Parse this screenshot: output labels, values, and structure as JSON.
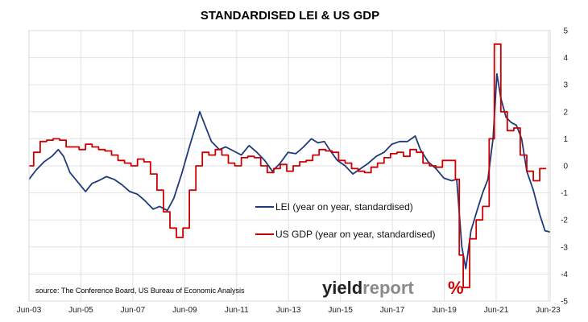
{
  "chart_data": {
    "type": "line",
    "title": "STANDARDISED LEI & US GDP",
    "source": "source: The Conference Board, US Bureau of Economic Analysis",
    "brand": {
      "part1": "yield",
      "part2": "report",
      "symbol": "%"
    },
    "x_tick_labels": [
      "Jun-03",
      "Jun-05",
      "Jun-07",
      "Jun-09",
      "Jun-11",
      "Jun-13",
      "Jun-15",
      "Jun-17",
      "Jun-19",
      "Jun-21",
      "Jun-23"
    ],
    "y_ticks": [
      5,
      4,
      3,
      2,
      1,
      0,
      -1,
      -2,
      -3,
      -4,
      -5
    ],
    "ylim": [
      -5,
      5
    ],
    "xlim": [
      2003.42,
      2023.5
    ],
    "y_axis_side": "right",
    "grid": {
      "horizontal": true,
      "vertical": true
    },
    "legend_position": "center",
    "colors": {
      "lei": "#1f3a7a",
      "gdp": "#cc0000",
      "brand_dark": "#222222",
      "brand_accent": "#8a8a8a",
      "brand_symbol": "#cc0000",
      "grid": "#e2e2e2"
    },
    "series": [
      {
        "name": "LEI (year on year, standardised)",
        "color": "#1f3a7a",
        "style": "line",
        "points": [
          [
            2003.42,
            -0.5
          ],
          [
            2003.7,
            -0.15
          ],
          [
            2004.0,
            0.15
          ],
          [
            2004.3,
            0.35
          ],
          [
            2004.55,
            0.6
          ],
          [
            2004.75,
            0.35
          ],
          [
            2005.0,
            -0.25
          ],
          [
            2005.3,
            -0.6
          ],
          [
            2005.6,
            -0.95
          ],
          [
            2005.85,
            -0.65
          ],
          [
            2006.1,
            -0.55
          ],
          [
            2006.4,
            -0.4
          ],
          [
            2006.7,
            -0.5
          ],
          [
            2007.0,
            -0.7
          ],
          [
            2007.3,
            -0.95
          ],
          [
            2007.6,
            -1.05
          ],
          [
            2007.9,
            -1.3
          ],
          [
            2008.2,
            -1.6
          ],
          [
            2008.45,
            -1.5
          ],
          [
            2008.75,
            -1.65
          ],
          [
            2009.0,
            -1.2
          ],
          [
            2009.3,
            -0.3
          ],
          [
            2009.6,
            0.7
          ],
          [
            2009.85,
            1.5
          ],
          [
            2010.0,
            2.0
          ],
          [
            2010.2,
            1.5
          ],
          [
            2010.45,
            0.9
          ],
          [
            2010.75,
            0.6
          ],
          [
            2011.0,
            0.7
          ],
          [
            2011.3,
            0.55
          ],
          [
            2011.6,
            0.4
          ],
          [
            2011.9,
            0.75
          ],
          [
            2012.2,
            0.5
          ],
          [
            2012.5,
            0.2
          ],
          [
            2012.8,
            -0.2
          ],
          [
            2013.1,
            0.1
          ],
          [
            2013.4,
            0.5
          ],
          [
            2013.7,
            0.45
          ],
          [
            2014.0,
            0.7
          ],
          [
            2014.3,
            1.0
          ],
          [
            2014.55,
            0.85
          ],
          [
            2014.8,
            0.9
          ],
          [
            2015.0,
            0.6
          ],
          [
            2015.3,
            0.2
          ],
          [
            2015.6,
            0.0
          ],
          [
            2015.9,
            -0.3
          ],
          [
            2016.2,
            -0.1
          ],
          [
            2016.5,
            0.1
          ],
          [
            2016.8,
            0.35
          ],
          [
            2017.1,
            0.5
          ],
          [
            2017.4,
            0.8
          ],
          [
            2017.7,
            0.9
          ],
          [
            2018.0,
            0.9
          ],
          [
            2018.3,
            1.1
          ],
          [
            2018.5,
            0.6
          ],
          [
            2018.8,
            0.15
          ],
          [
            2019.1,
            -0.1
          ],
          [
            2019.4,
            -0.45
          ],
          [
            2019.7,
            -0.55
          ],
          [
            2019.9,
            -0.5
          ],
          [
            2020.1,
            -3.0
          ],
          [
            2020.25,
            -3.8
          ],
          [
            2020.45,
            -2.4
          ],
          [
            2020.7,
            -1.6
          ],
          [
            2020.9,
            -1.0
          ],
          [
            2021.1,
            -0.5
          ],
          [
            2021.3,
            1.0
          ],
          [
            2021.45,
            3.4
          ],
          [
            2021.6,
            2.5
          ],
          [
            2021.8,
            1.8
          ],
          [
            2022.0,
            1.6
          ],
          [
            2022.2,
            1.5
          ],
          [
            2022.4,
            1.0
          ],
          [
            2022.6,
            -0.2
          ],
          [
            2022.85,
            -0.9
          ],
          [
            2023.1,
            -1.8
          ],
          [
            2023.3,
            -2.4
          ],
          [
            2023.5,
            -2.45
          ]
        ]
      },
      {
        "name": "US GDP (year on year, standardised)",
        "color": "#cc0000",
        "style": "step",
        "points": [
          [
            2003.42,
            0.0
          ],
          [
            2003.6,
            0.5
          ],
          [
            2003.85,
            0.9
          ],
          [
            2004.1,
            0.95
          ],
          [
            2004.35,
            1.0
          ],
          [
            2004.6,
            0.95
          ],
          [
            2004.85,
            0.7
          ],
          [
            2005.1,
            0.7
          ],
          [
            2005.35,
            0.6
          ],
          [
            2005.6,
            0.8
          ],
          [
            2005.85,
            0.7
          ],
          [
            2006.1,
            0.6
          ],
          [
            2006.35,
            0.55
          ],
          [
            2006.6,
            0.4
          ],
          [
            2006.85,
            0.2
          ],
          [
            2007.1,
            0.1
          ],
          [
            2007.35,
            0.0
          ],
          [
            2007.6,
            0.25
          ],
          [
            2007.85,
            0.15
          ],
          [
            2008.1,
            -0.3
          ],
          [
            2008.35,
            -0.9
          ],
          [
            2008.6,
            -1.7
          ],
          [
            2008.85,
            -2.3
          ],
          [
            2009.1,
            -2.65
          ],
          [
            2009.35,
            -2.3
          ],
          [
            2009.6,
            -0.9
          ],
          [
            2009.85,
            0.0
          ],
          [
            2010.1,
            0.5
          ],
          [
            2010.35,
            0.4
          ],
          [
            2010.6,
            0.6
          ],
          [
            2010.85,
            0.4
          ],
          [
            2011.1,
            0.1
          ],
          [
            2011.35,
            0.0
          ],
          [
            2011.6,
            0.3
          ],
          [
            2011.85,
            0.35
          ],
          [
            2012.1,
            0.3
          ],
          [
            2012.35,
            0.0
          ],
          [
            2012.6,
            -0.25
          ],
          [
            2012.85,
            -0.1
          ],
          [
            2013.1,
            0.05
          ],
          [
            2013.35,
            -0.2
          ],
          [
            2013.6,
            0.0
          ],
          [
            2013.85,
            0.15
          ],
          [
            2014.1,
            0.2
          ],
          [
            2014.35,
            0.4
          ],
          [
            2014.6,
            0.6
          ],
          [
            2014.85,
            0.55
          ],
          [
            2015.1,
            0.5
          ],
          [
            2015.35,
            0.2
          ],
          [
            2015.6,
            0.1
          ],
          [
            2015.85,
            -0.1
          ],
          [
            2016.1,
            -0.2
          ],
          [
            2016.35,
            -0.25
          ],
          [
            2016.6,
            -0.05
          ],
          [
            2016.85,
            0.1
          ],
          [
            2017.1,
            0.3
          ],
          [
            2017.35,
            0.45
          ],
          [
            2017.6,
            0.5
          ],
          [
            2017.85,
            0.35
          ],
          [
            2018.1,
            0.6
          ],
          [
            2018.35,
            0.5
          ],
          [
            2018.6,
            0.1
          ],
          [
            2018.85,
            0.0
          ],
          [
            2019.1,
            -0.05
          ],
          [
            2019.35,
            0.2
          ],
          [
            2019.6,
            0.2
          ],
          [
            2019.85,
            -0.5
          ],
          [
            2020.0,
            -3.3
          ],
          [
            2020.15,
            -4.5
          ],
          [
            2020.4,
            -2.7
          ],
          [
            2020.65,
            -2.0
          ],
          [
            2020.9,
            -1.5
          ],
          [
            2021.15,
            1.0
          ],
          [
            2021.35,
            4.5
          ],
          [
            2021.6,
            2.0
          ],
          [
            2021.85,
            1.3
          ],
          [
            2022.1,
            1.4
          ],
          [
            2022.35,
            0.4
          ],
          [
            2022.6,
            -0.2
          ],
          [
            2022.85,
            -0.55
          ],
          [
            2023.1,
            -0.1
          ],
          [
            2023.35,
            -0.1
          ]
        ]
      }
    ]
  }
}
